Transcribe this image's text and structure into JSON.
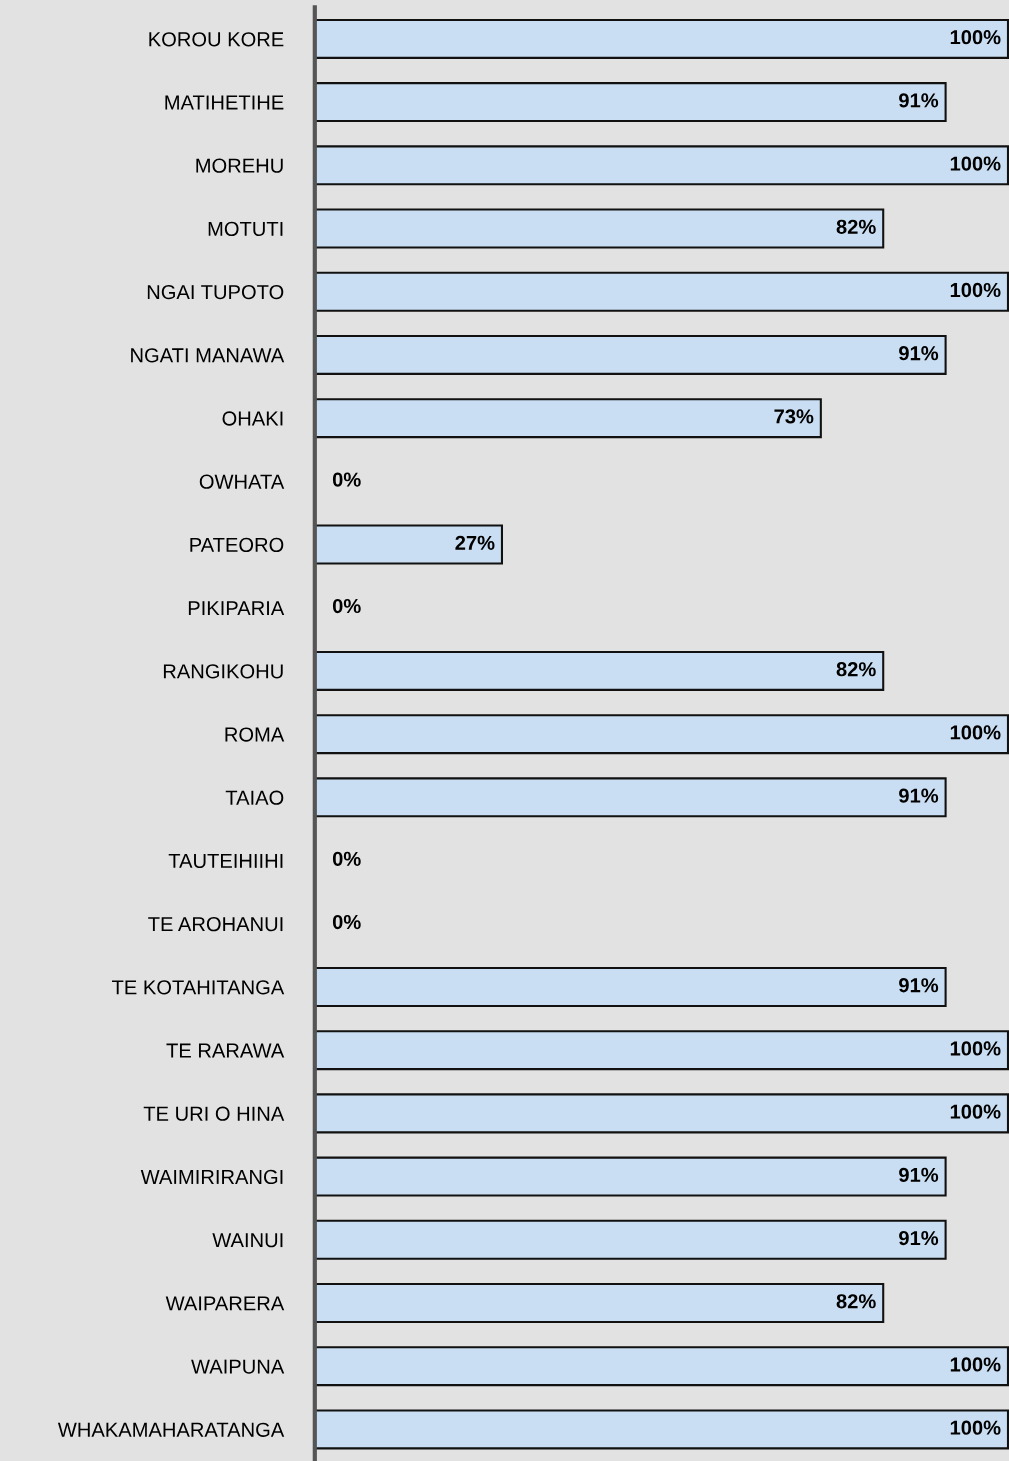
{
  "chart_data": {
    "type": "bar",
    "orientation": "horizontal",
    "categories": [
      "KOROU KORE",
      "MATIHETIHE",
      "MOREHU",
      "MOTUTI",
      "NGAI TUPOTO",
      "NGATI MANAWA",
      "OHAKI",
      "OWHATA",
      "PATEORO",
      "PIKIPARIA",
      "RANGIKOHU",
      "ROMA",
      "TAIAO",
      "TAUTEIHIIHI",
      "TE AROHANUI",
      "TE KOTAHITANGA",
      "TE RARAWA",
      "TE URI O HINA",
      "WAIMIRIRANGI",
      "WAINUI",
      "WAIPARERA",
      "WAIPUNA",
      "WHAKAMAHARATANGA"
    ],
    "values": [
      100,
      91,
      100,
      82,
      100,
      91,
      73,
      0,
      27,
      0,
      82,
      100,
      91,
      0,
      0,
      91,
      100,
      100,
      91,
      91,
      82,
      100,
      100
    ],
    "value_labels": [
      "100%",
      "91%",
      "100%",
      "82%",
      "100%",
      "91%",
      "73%",
      "0%",
      "27%",
      "0%",
      "82%",
      "100%",
      "91%",
      "0%",
      "0%",
      "91%",
      "100%",
      "100%",
      "91%",
      "91%",
      "82%",
      "100%",
      "100%"
    ],
    "color": "#c9def2",
    "xlim": [
      0,
      100
    ],
    "tick_labels": "y",
    "grid": false,
    "legend": false
  }
}
